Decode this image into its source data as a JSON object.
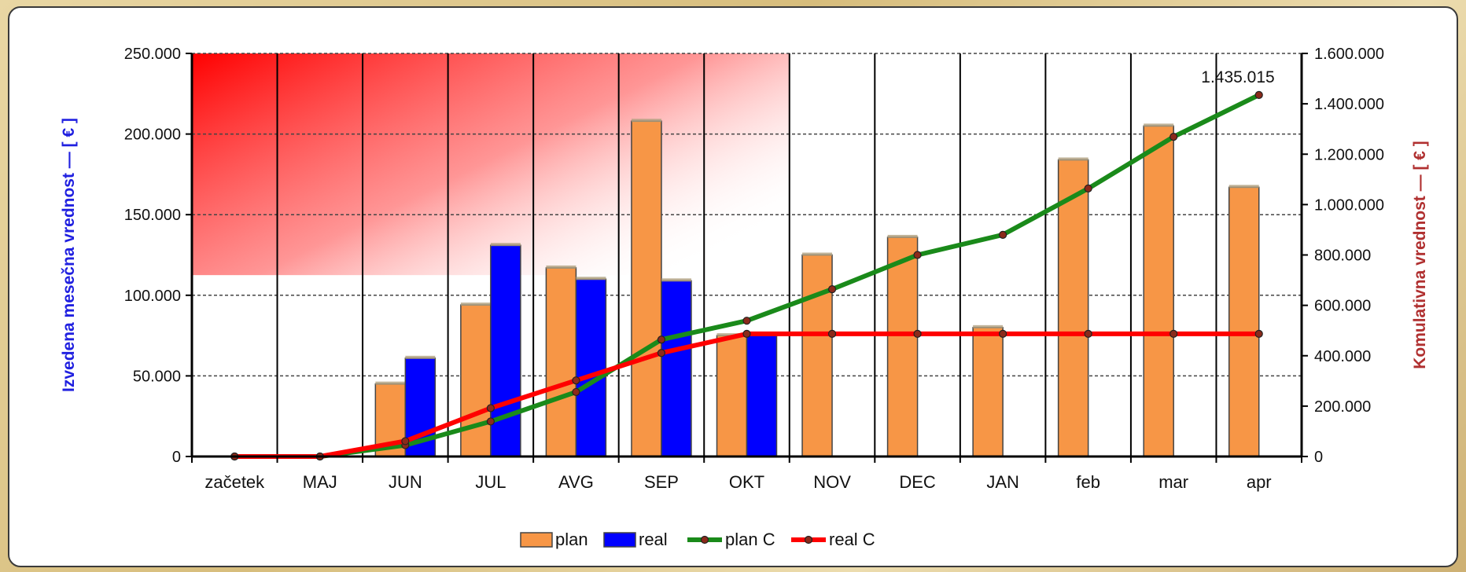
{
  "chart_data": {
    "type": "bar",
    "title": "",
    "categories": [
      "začetek",
      "MAJ",
      "JUN",
      "JUL",
      "AVG",
      "SEP",
      "OKT",
      "NOV",
      "DEC",
      "JAN",
      "feb",
      "mar",
      "apr"
    ],
    "ylabel": "Izvedena mesečna vrednost — [ € ]",
    "ylabel_right": "Komulativna vrednost — [ € ]",
    "ylim": [
      0,
      250000
    ],
    "ylim_right": [
      0,
      1600000
    ],
    "y_ticks": [
      "0",
      "50.000",
      "100.000",
      "150.000",
      "200.000",
      "250.000"
    ],
    "y_ticks_right": [
      "0",
      "200.000",
      "400.000",
      "600.000",
      "800.000",
      "1.000.000",
      "1.200.000",
      "1.400.000",
      "1.600.000"
    ],
    "grid": true,
    "legend_position": "bottom",
    "series": [
      {
        "name": "plan",
        "kind": "bar",
        "axis": "left",
        "color": "#f79646",
        "values": [
          0,
          0,
          45000,
          94000,
          117000,
          208000,
          75000,
          125000,
          136000,
          80000,
          184000,
          205000,
          167000
        ]
      },
      {
        "name": "real",
        "kind": "bar",
        "axis": "left",
        "color": "#0000ff",
        "values": [
          0,
          0,
          61000,
          131000,
          110000,
          109000,
          76000,
          null,
          null,
          null,
          null,
          null,
          null
        ]
      },
      {
        "name": "plan C",
        "kind": "line",
        "axis": "right",
        "color": "#1a8a1a",
        "values": [
          0,
          0,
          45000,
          139000,
          256000,
          464000,
          539000,
          664000,
          800000,
          880000,
          1064000,
          1269000,
          1435015
        ]
      },
      {
        "name": "real C",
        "kind": "line",
        "axis": "right",
        "color": "#ff0000",
        "values": [
          0,
          0,
          61000,
          192000,
          302000,
          411000,
          487000,
          487000,
          487000,
          487000,
          487000,
          487000,
          487000
        ]
      }
    ],
    "annotations": [
      {
        "text": "1.435.015",
        "category": "apr",
        "series": "plan C"
      }
    ],
    "colors": {
      "highlight": "#ff0000"
    }
  }
}
